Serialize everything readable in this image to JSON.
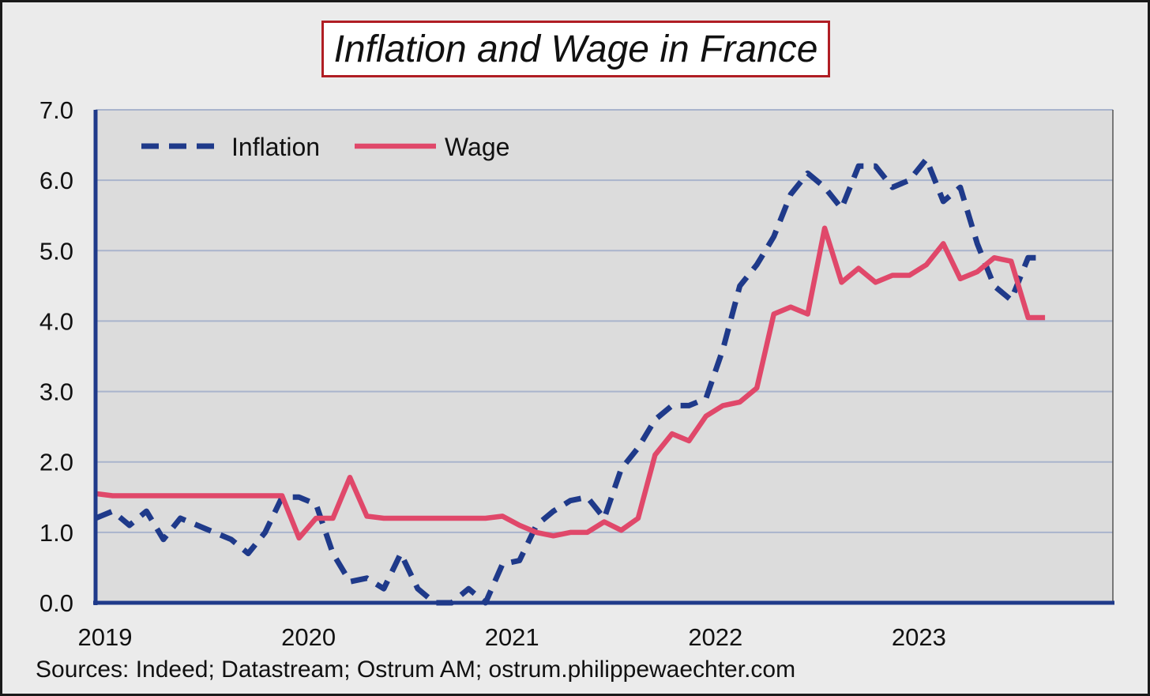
{
  "chart_data": {
    "type": "line",
    "title": "Inflation and Wage in France",
    "source": "Sources: Indeed; Datastream; Ostrum AM; ostrum.philippewaechter.com",
    "xlabel": "",
    "ylabel": "",
    "ylim": [
      0,
      7
    ],
    "xlim": [
      2019.0,
      2024.0
    ],
    "yticks": [
      "0.0",
      "1.0",
      "2.0",
      "3.0",
      "4.0",
      "5.0",
      "6.0",
      "7.0"
    ],
    "xticks": [
      "2019",
      "2020",
      "2021",
      "2022",
      "2023"
    ],
    "grid": true,
    "legend_position": "top-left",
    "colors": {
      "inflation": "#1f3a8a",
      "wage": "#e0486a",
      "plot_bg": "#dcdcdc",
      "grid": "#a9b4cc",
      "axis": "#1f3a8a",
      "title_border": "#b01e24"
    },
    "series": [
      {
        "name": "Inflation",
        "style": "dashed",
        "x": [
          "2019-01",
          "2019-02",
          "2019-03",
          "2019-04",
          "2019-05",
          "2019-06",
          "2019-07",
          "2019-08",
          "2019-09",
          "2019-10",
          "2019-11",
          "2019-12",
          "2020-01",
          "2020-02",
          "2020-03",
          "2020-04",
          "2020-05",
          "2020-06",
          "2020-07",
          "2020-08",
          "2020-09",
          "2020-10",
          "2020-11",
          "2020-12",
          "2021-01",
          "2021-02",
          "2021-03",
          "2021-04",
          "2021-05",
          "2021-06",
          "2021-07",
          "2021-08",
          "2021-09",
          "2021-10",
          "2021-11",
          "2021-12",
          "2022-01",
          "2022-02",
          "2022-03",
          "2022-04",
          "2022-05",
          "2022-06",
          "2022-07",
          "2022-08",
          "2022-09",
          "2022-10",
          "2022-11",
          "2022-12",
          "2023-01",
          "2023-02",
          "2023-03",
          "2023-04",
          "2023-05",
          "2023-06",
          "2023-07",
          "2023-08",
          "2023-09"
        ],
        "values": [
          1.2,
          1.3,
          1.1,
          1.3,
          0.9,
          1.2,
          1.1,
          1.0,
          0.9,
          0.7,
          1.0,
          1.5,
          1.5,
          1.4,
          0.7,
          0.3,
          0.35,
          0.2,
          0.7,
          0.2,
          0.0,
          0.0,
          0.2,
          0.0,
          0.55,
          0.6,
          1.1,
          1.3,
          1.45,
          1.5,
          1.2,
          1.9,
          2.2,
          2.6,
          2.8,
          2.8,
          2.9,
          3.6,
          4.5,
          4.8,
          5.2,
          5.8,
          6.1,
          5.9,
          5.6,
          6.2,
          6.2,
          5.9,
          6.0,
          6.3,
          5.7,
          5.9,
          5.1,
          4.5,
          4.3,
          4.9,
          4.9
        ]
      },
      {
        "name": "Wage",
        "style": "solid",
        "x": [
          "2019-01",
          "2019-02",
          "2019-03",
          "2019-04",
          "2019-05",
          "2019-06",
          "2019-07",
          "2019-08",
          "2019-09",
          "2019-10",
          "2019-11",
          "2019-12",
          "2020-01",
          "2020-02",
          "2020-03",
          "2020-04",
          "2020-05",
          "2020-06",
          "2020-07",
          "2020-08",
          "2020-09",
          "2020-10",
          "2020-11",
          "2020-12",
          "2021-01",
          "2021-02",
          "2021-03",
          "2021-04",
          "2021-05",
          "2021-06",
          "2021-07",
          "2021-08",
          "2021-09",
          "2021-10",
          "2021-11",
          "2021-12",
          "2022-01",
          "2022-02",
          "2022-03",
          "2022-04",
          "2022-05",
          "2022-06",
          "2022-07",
          "2022-08",
          "2022-09",
          "2022-10",
          "2022-11",
          "2022-12",
          "2023-01",
          "2023-02",
          "2023-03",
          "2023-04",
          "2023-05",
          "2023-06",
          "2023-07",
          "2023-08",
          "2023-09"
        ],
        "values": [
          1.55,
          1.52,
          1.52,
          1.52,
          1.52,
          1.52,
          1.52,
          1.52,
          1.52,
          1.52,
          1.52,
          1.52,
          0.92,
          1.2,
          1.2,
          1.78,
          1.23,
          1.2,
          1.2,
          1.2,
          1.2,
          1.2,
          1.2,
          1.2,
          1.23,
          1.1,
          1.0,
          0.95,
          1.0,
          1.0,
          1.15,
          1.03,
          1.2,
          2.1,
          2.4,
          2.3,
          2.65,
          2.8,
          2.85,
          3.05,
          4.1,
          4.2,
          4.1,
          5.32,
          4.55,
          4.75,
          4.55,
          4.65,
          4.65,
          4.8,
          5.1,
          4.6,
          4.7,
          4.9,
          4.85,
          4.05,
          4.05
        ]
      }
    ]
  }
}
